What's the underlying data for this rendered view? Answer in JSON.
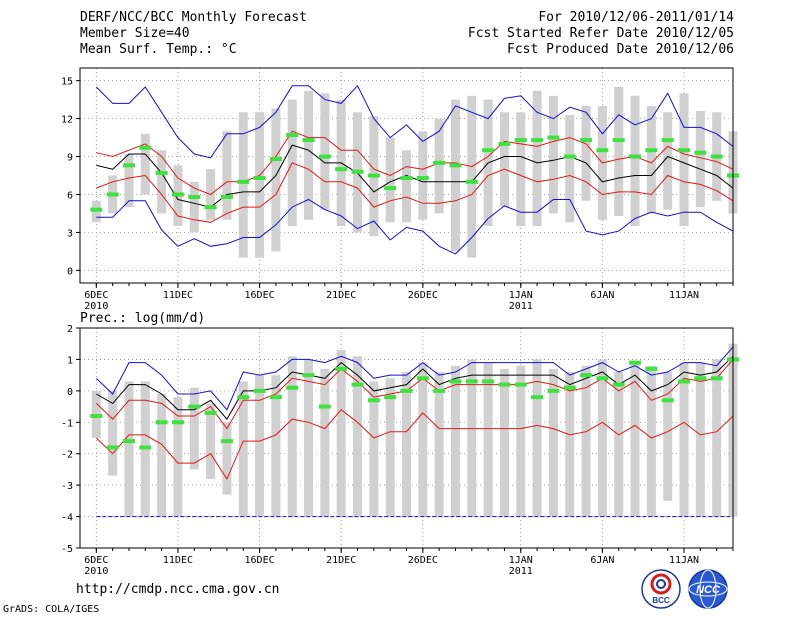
{
  "header": {
    "left": [
      "DERF/NCC/BCC Monthly Forecast",
      "Member Size=40",
      "Mean Surf. Temp.: °C"
    ],
    "right": [
      "For 2010/12/06-2011/01/14",
      "Fcst Started Refer Date 2010/12/05",
      "Fcst Produced Date 2010/12/06"
    ]
  },
  "prec_label": "Prec.: log(mm/d)",
  "footer": {
    "url": "http://cmdp.ncc.cma.gov.cn",
    "credit": "GrADS: COLA/IGES"
  },
  "logos": {
    "bcc_text": "BCC",
    "ncc_text": "NCC"
  },
  "colors": {
    "black": "#000000",
    "red": "#e01818",
    "blue": "#1010d0",
    "green": "#40e040",
    "gray": "#d0d0d0"
  },
  "chart_data": [
    {
      "type": "line",
      "title": "Mean Surf. Temp.: °C",
      "ylim": [
        -1,
        16
      ],
      "yticks": [
        0,
        3,
        6,
        9,
        12,
        15
      ],
      "xlim": [
        0,
        40
      ],
      "xticks": [
        {
          "x": 1,
          "label": "6DEC",
          "sub": "2010"
        },
        {
          "x": 6,
          "label": "11DEC",
          "sub": ""
        },
        {
          "x": 11,
          "label": "16DEC",
          "sub": ""
        },
        {
          "x": 16,
          "label": "21DEC",
          "sub": ""
        },
        {
          "x": 21,
          "label": "26DEC",
          "sub": ""
        },
        {
          "x": 27,
          "label": "1JAN",
          "sub": "2011"
        },
        {
          "x": 32,
          "label": "6JAN",
          "sub": ""
        },
        {
          "x": 37,
          "label": "11JAN",
          "sub": ""
        }
      ],
      "x": [
        1,
        2,
        3,
        4,
        5,
        6,
        7,
        8,
        9,
        10,
        11,
        12,
        13,
        14,
        15,
        16,
        17,
        18,
        19,
        20,
        21,
        22,
        23,
        24,
        25,
        26,
        27,
        28,
        29,
        30,
        31,
        32,
        33,
        34,
        35,
        36,
        37,
        38,
        39,
        40
      ],
      "series": [
        {
          "name": "max",
          "color": "blue",
          "values": [
            14.5,
            13.2,
            13.2,
            14.5,
            12.5,
            10.5,
            9.2,
            8.9,
            10.8,
            10.8,
            11.3,
            12.5,
            14.6,
            14.6,
            13.5,
            13.2,
            14.6,
            12.0,
            10.5,
            11.5,
            10.2,
            11.0,
            13.0,
            12.5,
            12.0,
            13.6,
            13.8,
            12.5,
            12.0,
            12.9,
            12.5,
            10.8,
            12.3,
            11.5,
            12.0,
            14.0,
            11.3,
            11.3,
            10.8,
            9.8
          ]
        },
        {
          "name": "p_high",
          "color": "red",
          "values": [
            9.3,
            9.0,
            9.5,
            10.0,
            9.0,
            7.3,
            6.5,
            6.0,
            7.0,
            7.0,
            7.5,
            9.0,
            11.0,
            10.5,
            10.5,
            9.5,
            9.5,
            8.0,
            7.5,
            8.2,
            8.0,
            8.5,
            8.5,
            8.2,
            9.0,
            10.2,
            10.0,
            9.8,
            10.2,
            10.5,
            10.0,
            8.5,
            8.8,
            9.0,
            8.5,
            9.8,
            9.2,
            8.9,
            8.6,
            8.0
          ]
        },
        {
          "name": "mean",
          "color": "black",
          "values": [
            8.3,
            8.0,
            9.2,
            9.2,
            7.7,
            5.6,
            5.3,
            5.0,
            6.0,
            6.2,
            6.2,
            7.5,
            9.9,
            9.5,
            8.5,
            8.5,
            7.7,
            6.2,
            7.0,
            7.5,
            7.0,
            7.0,
            7.0,
            7.0,
            8.5,
            9.0,
            9.0,
            8.5,
            8.7,
            9.0,
            8.5,
            7.0,
            7.3,
            7.5,
            7.5,
            9.0,
            8.5,
            8.0,
            7.5,
            6.5
          ]
        },
        {
          "name": "p_low",
          "color": "red",
          "values": [
            6.5,
            7.0,
            7.3,
            7.5,
            6.0,
            4.3,
            4.0,
            3.8,
            4.5,
            5.0,
            5.0,
            6.0,
            8.5,
            8.0,
            7.0,
            7.0,
            6.5,
            5.0,
            5.5,
            5.8,
            5.3,
            5.3,
            5.5,
            6.0,
            7.5,
            8.0,
            7.5,
            7.0,
            7.2,
            7.5,
            7.0,
            6.0,
            6.2,
            6.2,
            6.0,
            7.5,
            7.0,
            6.8,
            6.3,
            5.5
          ]
        },
        {
          "name": "min",
          "color": "blue",
          "values": [
            4.2,
            4.2,
            5.5,
            5.5,
            3.2,
            1.9,
            2.5,
            1.9,
            2.1,
            2.6,
            2.6,
            3.6,
            5.0,
            5.6,
            4.8,
            4.3,
            3.3,
            3.9,
            2.4,
            3.4,
            3.1,
            1.9,
            1.3,
            2.6,
            4.1,
            5.1,
            4.6,
            4.6,
            5.6,
            5.6,
            3.1,
            2.8,
            3.1,
            4.1,
            4.6,
            4.3,
            4.6,
            4.6,
            3.8,
            3.1
          ]
        },
        {
          "name": "member",
          "color": "green",
          "marker": "dash",
          "values": [
            4.8,
            6.0,
            8.3,
            9.7,
            7.7,
            6.0,
            5.8,
            5.0,
            5.8,
            7.0,
            7.3,
            8.8,
            10.7,
            10.3,
            9.0,
            8.0,
            7.8,
            7.5,
            6.5,
            7.3,
            7.3,
            8.5,
            8.3,
            7.0,
            9.5,
            10.0,
            10.3,
            10.3,
            10.5,
            9.0,
            10.3,
            9.5,
            10.3,
            9.0,
            9.5,
            10.3,
            9.5,
            9.3,
            9.0,
            7.5
          ]
        },
        {
          "name": "range_top",
          "color": "gray",
          "marker": "bar",
          "values": [
            5.5,
            7.5,
            9.2,
            10.8,
            9.5,
            8.3,
            7.0,
            8.0,
            11.0,
            12.5,
            12.5,
            12.8,
            13.5,
            14.2,
            14.0,
            13.5,
            12.5,
            12.2,
            10.5,
            9.5,
            11.0,
            12.0,
            13.5,
            13.8,
            13.5,
            12.5,
            12.5,
            14.2,
            13.8,
            12.3,
            13.0,
            13.0,
            14.5,
            13.8,
            13.0,
            12.5,
            14.0,
            12.6,
            12.5,
            11.0
          ]
        },
        {
          "name": "range_bottom",
          "color": "gray",
          "marker": "bar",
          "values": [
            3.8,
            4.5,
            5.0,
            6.0,
            4.5,
            3.5,
            3.0,
            4.0,
            4.0,
            1.0,
            1.0,
            1.5,
            3.5,
            4.0,
            4.8,
            3.5,
            3.0,
            2.7,
            3.8,
            3.8,
            4.0,
            4.5,
            1.5,
            1.0,
            3.5,
            5.0,
            3.5,
            3.5,
            4.5,
            3.8,
            5.5,
            4.0,
            4.3,
            3.5,
            4.5,
            4.8,
            3.5,
            5.0,
            5.5,
            4.5
          ]
        }
      ]
    },
    {
      "type": "line",
      "title": "Prec.: log(mm/d)",
      "ylim": [
        -5,
        2
      ],
      "yticks": [
        -5,
        -4,
        -3,
        -2,
        -1,
        0,
        1,
        2
      ],
      "xlim": [
        0,
        40
      ],
      "xticks": [
        {
          "x": 1,
          "label": "6DEC",
          "sub": "2010"
        },
        {
          "x": 6,
          "label": "11DEC",
          "sub": ""
        },
        {
          "x": 11,
          "label": "16DEC",
          "sub": ""
        },
        {
          "x": 16,
          "label": "21DEC",
          "sub": ""
        },
        {
          "x": 21,
          "label": "26DEC",
          "sub": ""
        },
        {
          "x": 27,
          "label": "1JAN",
          "sub": "2011"
        },
        {
          "x": 32,
          "label": "6JAN",
          "sub": ""
        },
        {
          "x": 37,
          "label": "11JAN",
          "sub": ""
        }
      ],
      "x": [
        1,
        2,
        3,
        4,
        5,
        6,
        7,
        8,
        9,
        10,
        11,
        12,
        13,
        14,
        15,
        16,
        17,
        18,
        19,
        20,
        21,
        22,
        23,
        24,
        25,
        26,
        27,
        28,
        29,
        30,
        31,
        32,
        33,
        34,
        35,
        36,
        37,
        38,
        39,
        40
      ],
      "series": [
        {
          "name": "max",
          "color": "blue",
          "values": [
            0.4,
            -0.1,
            0.9,
            0.9,
            0.5,
            -0.1,
            -0.1,
            0.0,
            -0.6,
            0.6,
            0.5,
            0.6,
            1.0,
            1.0,
            0.9,
            1.1,
            0.9,
            0.4,
            0.5,
            0.5,
            0.9,
            0.5,
            0.6,
            0.9,
            0.9,
            0.9,
            0.9,
            0.9,
            0.9,
            0.5,
            0.7,
            0.9,
            0.6,
            0.8,
            0.5,
            0.6,
            0.9,
            0.9,
            0.8,
            1.4
          ]
        },
        {
          "name": "p_high",
          "color": "red",
          "values": [
            -0.4,
            -0.9,
            -0.3,
            -0.3,
            -0.4,
            -0.8,
            -0.8,
            -0.5,
            -1.2,
            -0.3,
            -0.3,
            -0.1,
            0.4,
            0.3,
            0.2,
            0.7,
            0.3,
            -0.2,
            -0.1,
            0.0,
            0.4,
            0.0,
            0.2,
            0.2,
            0.2,
            0.2,
            0.2,
            0.3,
            0.2,
            0.0,
            0.1,
            0.4,
            0.0,
            0.3,
            -0.3,
            -0.1,
            0.4,
            0.3,
            0.4,
            1.0
          ]
        },
        {
          "name": "mean",
          "color": "black",
          "values": [
            -0.1,
            -0.4,
            0.2,
            0.2,
            -0.1,
            -0.6,
            -0.6,
            -0.3,
            -0.9,
            0.0,
            0.0,
            0.1,
            0.6,
            0.5,
            0.4,
            0.9,
            0.5,
            0.0,
            0.1,
            0.2,
            0.7,
            0.2,
            0.4,
            0.5,
            0.5,
            0.5,
            0.5,
            0.5,
            0.5,
            0.2,
            0.4,
            0.6,
            0.2,
            0.5,
            0.0,
            0.2,
            0.6,
            0.5,
            0.6,
            1.1
          ]
        },
        {
          "name": "p_low",
          "color": "red",
          "values": [
            -1.5,
            -2.0,
            -1.4,
            -1.4,
            -1.7,
            -2.3,
            -2.3,
            -2.0,
            -2.8,
            -1.6,
            -1.6,
            -1.4,
            -0.9,
            -1.0,
            -1.2,
            -0.6,
            -1.0,
            -1.5,
            -1.3,
            -1.3,
            -0.7,
            -1.2,
            -1.2,
            -1.2,
            -1.2,
            -1.2,
            -1.2,
            -1.1,
            -1.2,
            -1.4,
            -1.3,
            -1.0,
            -1.4,
            -1.1,
            -1.5,
            -1.3,
            -1.0,
            -1.4,
            -1.3,
            -0.8
          ]
        },
        {
          "name": "member",
          "color": "green",
          "marker": "dash",
          "values": [
            -0.8,
            -1.8,
            -1.6,
            -1.8,
            -1.0,
            -1.0,
            -0.5,
            -0.7,
            -1.6,
            -0.2,
            0.0,
            -0.2,
            0.1,
            0.5,
            -0.5,
            0.7,
            0.2,
            -0.3,
            -0.2,
            0.0,
            0.4,
            0.0,
            0.3,
            0.3,
            0.3,
            0.2,
            0.2,
            -0.2,
            0.0,
            0.1,
            0.5,
            0.4,
            0.2,
            0.9,
            0.7,
            -0.3,
            0.3,
            0.4,
            0.4,
            1.0
          ]
        },
        {
          "name": "range_top",
          "color": "gray",
          "marker": "bar",
          "values": [
            0.0,
            0.0,
            0.3,
            0.3,
            -0.1,
            -0.2,
            0.1,
            -0.4,
            -1.0,
            0.3,
            0.5,
            0.5,
            1.1,
            1.0,
            0.7,
            1.3,
            1.1,
            0.3,
            0.4,
            0.6,
            0.9,
            0.6,
            0.8,
            1.0,
            0.9,
            0.7,
            0.8,
            1.0,
            0.7,
            0.6,
            0.8,
            1.0,
            0.6,
            0.9,
            0.8,
            0.6,
            0.9,
            0.9,
            1.0,
            1.5
          ]
        },
        {
          "name": "range_bottom",
          "color": "gray",
          "marker": "bar",
          "values": [
            -1.5,
            -2.7,
            -4.0,
            -4.0,
            -4.0,
            -4.0,
            -2.5,
            -2.8,
            -3.3,
            -4.0,
            -4.0,
            -4.0,
            -4.0,
            -4.0,
            -4.0,
            -4.0,
            -4.0,
            -4.0,
            -4.0,
            -4.0,
            -4.0,
            -4.0,
            -4.0,
            -4.0,
            -4.0,
            -4.0,
            -4.0,
            -4.0,
            -4.0,
            -4.0,
            -4.0,
            -4.0,
            -4.0,
            -4.0,
            -4.0,
            -3.5,
            -4.0,
            -4.0,
            -4.0,
            -4.0
          ]
        },
        {
          "name": "floor",
          "color": "blue",
          "marker": "dashed-line",
          "values": [
            -4,
            -4,
            -4,
            -4,
            -4,
            -4,
            -4,
            -4,
            -4,
            -4,
            -4,
            -4,
            -4,
            -4,
            -4,
            -4,
            -4,
            -4,
            -4,
            -4,
            -4,
            -4,
            -4,
            -4,
            -4,
            -4,
            -4,
            -4,
            -4,
            -4,
            -4,
            -4,
            -4,
            -4,
            -4,
            -4,
            -4,
            -4,
            -4,
            -4
          ]
        }
      ]
    }
  ]
}
